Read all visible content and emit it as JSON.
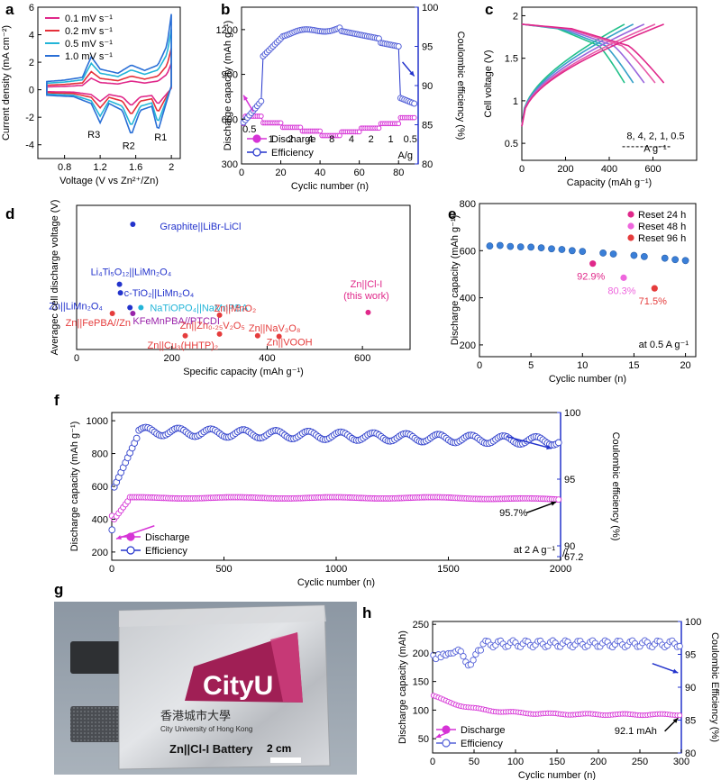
{
  "panel_labels": {
    "a": "a",
    "b": "b",
    "c": "c",
    "d": "d",
    "e": "e",
    "f": "f",
    "g": "g",
    "h": "h"
  },
  "colors": {
    "magenta": "#d633d6",
    "blue": "#2333cc",
    "lightblue": "#6b76e0",
    "red": "#e53c3c",
    "cyan": "#23b5d8",
    "pink": "#e0288a"
  },
  "photo": {
    "brand": "CityU",
    "chinese_name": "香港城市大學",
    "english_name": "City University of Hong Kong",
    "battery_label": "Zn||Cl-I Battery",
    "scale_bar": "2 cm"
  },
  "chart_data": [
    {
      "id": "a",
      "type": "line",
      "xlabel": "Voltage (V vs Zn²⁺/Zn)",
      "ylabel": "Current density (mA cm⁻²)",
      "xlim": [
        0.5,
        2.1
      ],
      "ylim": [
        -5,
        6
      ],
      "xticks": [
        0.8,
        1.2,
        1.6,
        2.0
      ],
      "yticks": [
        -4,
        -2,
        0,
        2,
        4,
        6
      ],
      "series": [
        {
          "name": "0.1 mV s⁻¹",
          "color": "#e0288a",
          "scale": 0.35
        },
        {
          "name": "0.2 mV s⁻¹",
          "color": "#e5303a",
          "scale": 0.55
        },
        {
          "name": "0.5 mV s⁻¹",
          "color": "#23b5d8",
          "scale": 0.8
        },
        {
          "name": "1.0 mV s⁻¹",
          "color": "#2a6fd6",
          "scale": 1.0
        }
      ],
      "base_anodic": [
        [
          0.6,
          0.6
        ],
        [
          0.8,
          0.7
        ],
        [
          1.0,
          0.9
        ],
        [
          1.1,
          2.4
        ],
        [
          1.2,
          1.5
        ],
        [
          1.4,
          1.2
        ],
        [
          1.55,
          1.8
        ],
        [
          1.7,
          1.4
        ],
        [
          1.85,
          1.8
        ],
        [
          1.95,
          3.2
        ],
        [
          2.0,
          5.5
        ]
      ],
      "base_cathodic": [
        [
          2.0,
          0.3
        ],
        [
          1.95,
          -0.8
        ],
        [
          1.85,
          -3.0
        ],
        [
          1.78,
          -1.2
        ],
        [
          1.65,
          -1.5
        ],
        [
          1.55,
          -3.3
        ],
        [
          1.45,
          -1.5
        ],
        [
          1.3,
          -1.0
        ],
        [
          1.2,
          -2.4
        ],
        [
          1.1,
          -1.0
        ],
        [
          0.9,
          -0.5
        ],
        [
          0.6,
          -0.4
        ]
      ],
      "annotations": [
        "R3",
        "R2",
        "R1"
      ]
    },
    {
      "id": "b",
      "type": "scatter",
      "xlabel": "Cyclic number (n)",
      "ylabel": "Discharge capacity (mAh g⁻¹)",
      "y2label": "Coulombic efficiency (%)",
      "xlim": [
        0,
        90
      ],
      "ylim": [
        300,
        1350
      ],
      "y2lim": [
        80,
        100
      ],
      "xticks": [
        0,
        20,
        40,
        60,
        80
      ],
      "yticks": [
        300,
        600,
        900,
        1200
      ],
      "y2ticks": [
        80,
        85,
        90,
        95,
        100
      ],
      "rate_labels": [
        "0.5",
        "1",
        "2",
        "4",
        "8",
        "4",
        "2",
        "1",
        "0.5"
      ],
      "rate_unit": "A/g",
      "legend": [
        "Discharge",
        "Efficiency"
      ]
    },
    {
      "id": "c",
      "type": "line",
      "xlabel": "Capacity (mAh g⁻¹)",
      "ylabel": "Cell voltage (V)",
      "xlim": [
        0,
        800
      ],
      "ylim": [
        0.3,
        2.1
      ],
      "xticks": [
        0,
        200,
        400,
        600
      ],
      "yticks": [
        0.5,
        1.0,
        1.5,
        2.0
      ],
      "rates_label": "8, 4, 2, 1, 0.5",
      "rates_unit": "A g⁻¹",
      "series": [
        {
          "name": "8",
          "color": "#22c08a",
          "max": 470
        },
        {
          "name": "4",
          "color": "#36a0c8",
          "max": 510
        },
        {
          "name": "2",
          "color": "#9966dd",
          "max": 560
        },
        {
          "name": "1",
          "color": "#e85aa8",
          "max": 610
        },
        {
          "name": "0.5",
          "color": "#e0288a",
          "max": 650
        }
      ]
    },
    {
      "id": "d",
      "type": "scatter",
      "xlabel": "Specific capacity (mAh g⁻¹)",
      "ylabel": "Averagec cell discharge voltage (V)",
      "xlim": [
        0,
        700
      ],
      "ylim": [
        0.4,
        4.6
      ],
      "xticks": [
        0,
        200,
        400,
        600
      ],
      "points": [
        {
          "label": "Graphite||LiBr-LiCl",
          "x": 118,
          "y": 4.05,
          "color": "#2333cc"
        },
        {
          "label": "Li₄Ti₅O₁₂||LiMn₂O₄",
          "x": 90,
          "y": 2.3,
          "color": "#2333cc"
        },
        {
          "label": "c-TiO₂||LiMn₂O₄",
          "x": 92,
          "y": 2.05,
          "color": "#2333cc"
        },
        {
          "label": "Zn||LiMn₂O₄",
          "x": 112,
          "y": 1.62,
          "color": "#2333cc"
        },
        {
          "label": "NaTiOPO₄||NaMnPBA",
          "x": 135,
          "y": 1.62,
          "color": "#23b5d8"
        },
        {
          "label": "KFeMnPBA//PTCDI",
          "x": 118,
          "y": 1.45,
          "color": "#9922aa"
        },
        {
          "label": "Zn||FePBA//Zn",
          "x": 75,
          "y": 1.45,
          "color": "#e53c3c"
        },
        {
          "label": "Zn||MnO₂",
          "x": 300,
          "y": 1.4,
          "color": "#e53c3c"
        },
        {
          "label": "Zn||Zn₀.₂₅V₂O₅",
          "x": 300,
          "y": 0.85,
          "color": "#e53c3c"
        },
        {
          "label": "Zn||Cu₃(HHTP)₂",
          "x": 228,
          "y": 0.8,
          "color": "#e53c3c"
        },
        {
          "label": "Zn||NaV₃O₈",
          "x": 380,
          "y": 0.8,
          "color": "#e53c3c"
        },
        {
          "label": "Zn||VOOH",
          "x": 425,
          "y": 0.78,
          "color": "#e53c3c"
        },
        {
          "label": "Zn||Cl-I (this work)",
          "x": 612,
          "y": 1.48,
          "color": "#e0288a"
        }
      ]
    },
    {
      "id": "e",
      "type": "scatter",
      "xlabel": "Cyclic number (n)",
      "ylabel": "Discharge capacity (mAh g⁻¹)",
      "xlim": [
        0,
        21
      ],
      "ylim": [
        150,
        800
      ],
      "xticks": [
        0,
        5,
        10,
        15,
        20
      ],
      "yticks": [
        200,
        400,
        600,
        800
      ],
      "values": [
        620,
        622,
        618,
        616,
        615,
        612,
        608,
        605,
        600,
        597,
        595,
        590,
        586,
        583,
        580,
        575,
        572,
        568,
        562,
        558
      ],
      "resets": [
        {
          "name": "Reset 24 h",
          "x": 11,
          "y": 545,
          "color": "#e0288a",
          "label": "92.9%"
        },
        {
          "name": "Reset 48 h",
          "x": 14,
          "y": 485,
          "color": "#ee66dd",
          "label": "80.3%"
        },
        {
          "name": "Reset 96 h",
          "x": 17,
          "y": 440,
          "color": "#e53c3c",
          "label": "71.5%"
        }
      ],
      "condition": "at 0.5 A g⁻¹"
    },
    {
      "id": "f",
      "type": "scatter",
      "xlabel": "Cyclic number (n)",
      "ylabel": "Discharge capacity (mAh g⁻¹)",
      "y2label": "Coulombic efficiency (%)",
      "xlim": [
        0,
        2000
      ],
      "ylim": [
        150,
        1050
      ],
      "xticks": [
        0,
        500,
        1000,
        1500,
        2000
      ],
      "yticks": [
        200,
        400,
        600,
        800,
        1000
      ],
      "y2ticks": [
        {
          "v": 100,
          "label": "100"
        },
        {
          "v": 95,
          "label": "95"
        },
        {
          "v": 90,
          "label": "90"
        },
        {
          "v": 67.2,
          "label": "67.2"
        }
      ],
      "retention": "95.7%",
      "condition": "at 2 A g⁻¹",
      "legend": [
        "Discharge",
        "Efficiency"
      ]
    },
    {
      "id": "h",
      "type": "scatter",
      "xlabel": "Cyclic number (n)",
      "ylabel": "Discharge capacity (mAh)",
      "y2label": "Coulombic Efficiency (%)",
      "xlim": [
        0,
        300
      ],
      "ylim": [
        25,
        255
      ],
      "y2lim": [
        80,
        100
      ],
      "xticks": [
        0,
        50,
        100,
        150,
        200,
        250,
        300
      ],
      "yticks": [
        50,
        100,
        150,
        200,
        250
      ],
      "y2ticks": [
        80,
        85,
        90,
        95,
        100
      ],
      "final_capacity": "92.1 mAh",
      "legend": [
        "Discharge",
        "Efficiency"
      ]
    }
  ]
}
